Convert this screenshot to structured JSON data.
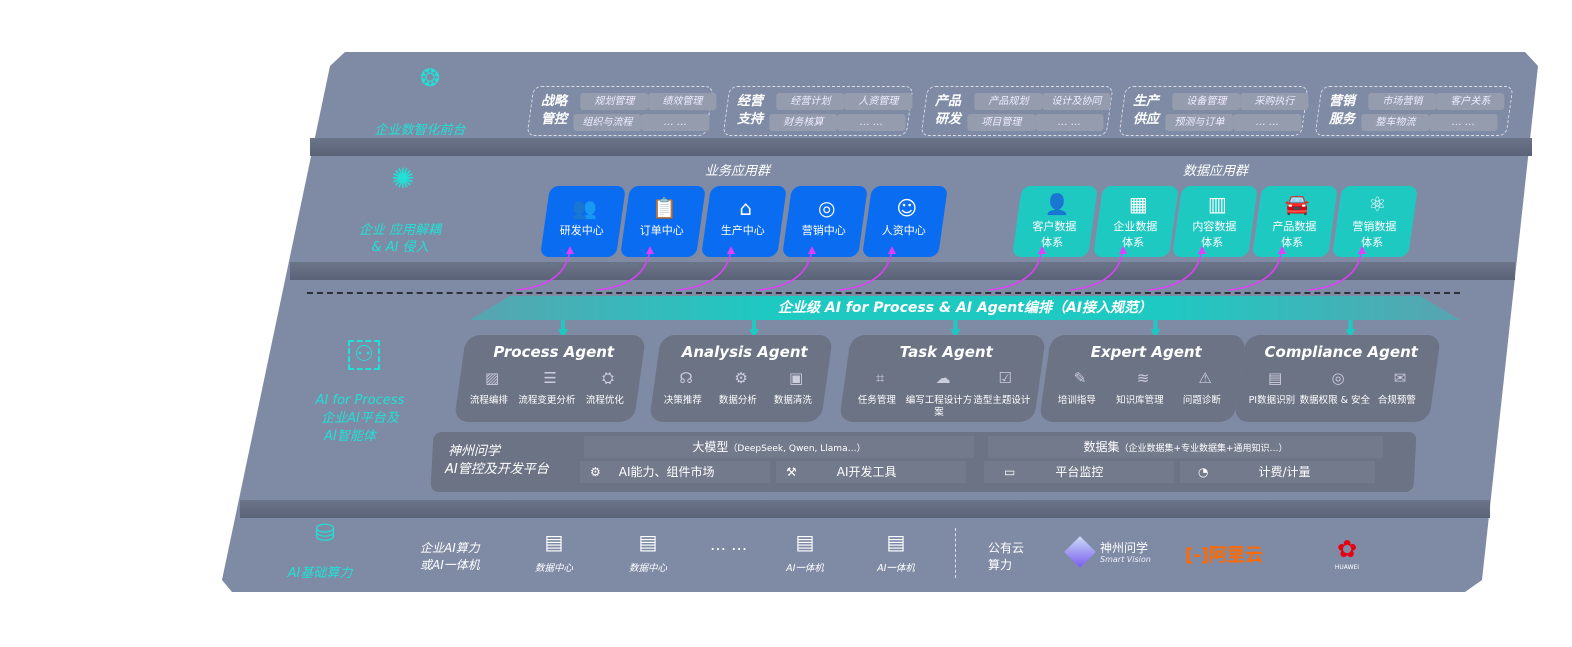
{
  "layers": {
    "front": {
      "label": "企业数智化前台",
      "icon": "brain-icon"
    },
    "apps": {
      "label_line1": "企业 应用解耦",
      "label_line2": "& AI 侵入",
      "icon": "molecule-icon"
    },
    "ai": {
      "label_line1": "AI for Process",
      "label_line2": "企业AI平台及",
      "label_line3": "AI智能体",
      "icon": "face-scan-icon"
    },
    "infra": {
      "label": "AI基础算力",
      "icon": "database-icon"
    }
  },
  "front_groups": [
    {
      "title1": "战略",
      "title2": "管控",
      "items": [
        "规划管理",
        "绩效管理",
        "组织与流程",
        "… …"
      ]
    },
    {
      "title1": "经营",
      "title2": "支持",
      "items": [
        "经营计划",
        "人资管理",
        "财务核算",
        "… …"
      ]
    },
    {
      "title1": "产品",
      "title2": "研发",
      "items": [
        "产品规划",
        "设计及协同",
        "项目管理",
        "… …"
      ]
    },
    {
      "title1": "生产",
      "title2": "供应",
      "items": [
        "设备管理",
        "采购执行",
        "预测与订单",
        "… …"
      ]
    },
    {
      "title1": "营销",
      "title2": "服务",
      "items": [
        "市场营销",
        "客户关系",
        "整车物流",
        "… …"
      ]
    }
  ],
  "business_apps": {
    "title": "业务应用群",
    "items": [
      {
        "label": "研发中心",
        "icon": "team-icon"
      },
      {
        "label": "订单中心",
        "icon": "clipboard-icon"
      },
      {
        "label": "生产中心",
        "icon": "factory-icon"
      },
      {
        "label": "营销中心",
        "icon": "target-icon"
      },
      {
        "label": "人资中心",
        "icon": "people-icon"
      }
    ]
  },
  "data_apps": {
    "title": "数据应用群",
    "items": [
      {
        "l1": "客户数据",
        "l2": "体系",
        "icon": "user-icon"
      },
      {
        "l1": "企业数据",
        "l2": "体系",
        "icon": "building-icon"
      },
      {
        "l1": "内容数据",
        "l2": "体系",
        "icon": "books-icon"
      },
      {
        "l1": "产品数据",
        "l2": "体系",
        "icon": "car-icon"
      },
      {
        "l1": "营销数据",
        "l2": "体系",
        "icon": "atom-icon"
      }
    ]
  },
  "orchestration_banner": "企业级 AI for Process & AI Agent编排（AI接入规范）",
  "agents": [
    {
      "name": "Process Agent",
      "items": [
        "流程编排",
        "流程变更分析",
        "流程优化"
      ]
    },
    {
      "name": "Analysis Agent",
      "items": [
        "决策推荐",
        "数据分析",
        "数据清洗"
      ]
    },
    {
      "name": "Task Agent",
      "items": [
        "任务管理",
        "编写工程设计方案",
        "造型主题设计"
      ]
    },
    {
      "name": "Expert Agent",
      "items": [
        "培训指导",
        "知识库管理",
        "问题诊断"
      ]
    },
    {
      "name": "Compliance Agent",
      "items": [
        "PI数据识别",
        "数据权限 & 安全",
        "合规预警"
      ]
    }
  ],
  "platform": {
    "title1": "神州问学",
    "title2": "AI管控及开发平台",
    "llm": "大模型",
    "llm_note": "（DeepSeek, Qwen, Llama…）",
    "dataset": "数据集",
    "dataset_note": "（企业数据集+专业数据集+通用知识…）",
    "tools": [
      "AI能力、组件市场",
      "AI开发工具",
      "平台监控",
      "计费/计量"
    ]
  },
  "infra": {
    "private_label1": "企业AI算力",
    "private_label2": "或AI一体机",
    "servers": [
      "数据中心",
      "数据中心",
      "AI一体机",
      "AI一体机"
    ],
    "ellipsis": "… …",
    "public_label1": "公有云",
    "public_label2": "算力",
    "vendors": [
      {
        "name": "神州问学",
        "sub": "Smart Vision"
      },
      {
        "name": "阿里云",
        "color": "#ff6a00"
      },
      {
        "name": "HUAWEI",
        "color": "#e60012"
      }
    ]
  },
  "colors": {
    "panel": "#7f8ba5",
    "blue": "#0a6cf0",
    "teal": "#1ec9c2",
    "accent": "#21e0d6",
    "arrow": "#e040fb"
  }
}
